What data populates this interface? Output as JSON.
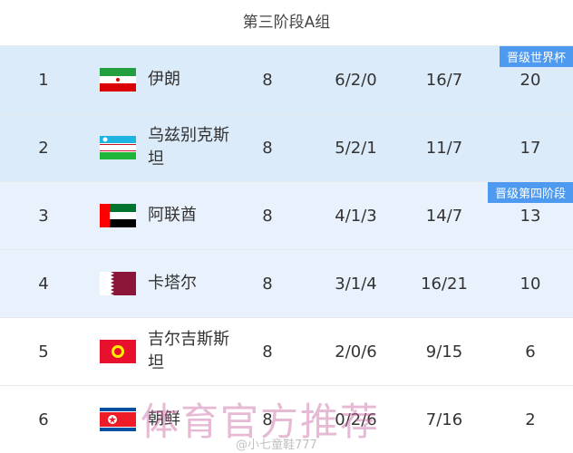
{
  "title": "第三阶段A组",
  "rows": [
    {
      "rank": "1",
      "flag": "iran-flag",
      "name": "伊朗",
      "played": "8",
      "wdl": "6/2/0",
      "goals": "16/7",
      "points": "20",
      "badge": "晋级世界杯"
    },
    {
      "rank": "2",
      "flag": "uzbekistan-flag",
      "name": "乌兹别克斯坦",
      "played": "8",
      "wdl": "5/2/1",
      "goals": "11/7",
      "points": "17"
    },
    {
      "rank": "3",
      "flag": "uae-flag",
      "name": "阿联酋",
      "played": "8",
      "wdl": "4/1/3",
      "goals": "14/7",
      "points": "13",
      "badge": "晋级第四阶段"
    },
    {
      "rank": "4",
      "flag": "qatar-flag",
      "name": "卡塔尔",
      "played": "8",
      "wdl": "3/1/4",
      "goals": "16/21",
      "points": "10"
    },
    {
      "rank": "5",
      "flag": "kyrgyzstan-flag",
      "name": "吉尔吉斯斯坦",
      "played": "8",
      "wdl": "2/0/6",
      "goals": "9/15",
      "points": "6"
    },
    {
      "rank": "6",
      "flag": "north-korea-flag",
      "name": "朝鲜",
      "played": "8",
      "wdl": "0/2/6",
      "goals": "7/16",
      "points": "2"
    }
  ],
  "watermark": "体育官方推荐",
  "weibo_handle": "@小七童鞋777",
  "colors": {
    "qualified_bg": "#dcebfa",
    "playoff_bg": "#e9f2fc",
    "badge": "#4d9af0"
  }
}
